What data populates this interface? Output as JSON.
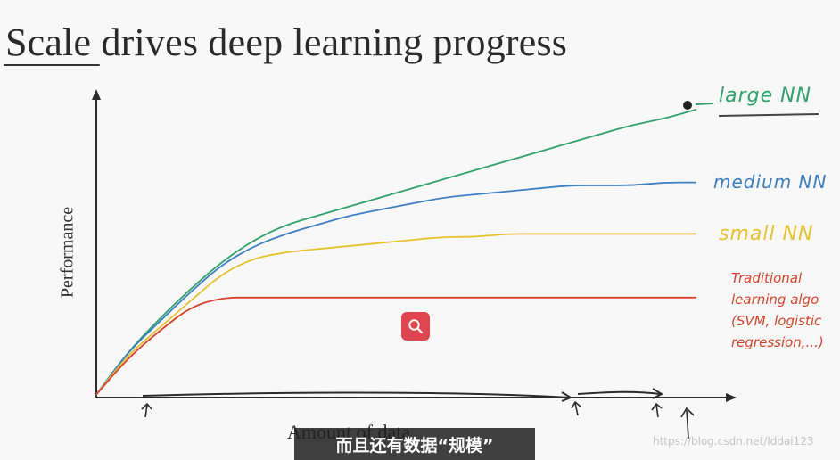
{
  "slide": {
    "title": "Scale drives deep learning progress",
    "title_underlined_word": "Scale"
  },
  "chart_data": {
    "type": "line",
    "xlabel": "Amount of data",
    "ylabel": "Performance",
    "xlim": [
      0,
      100
    ],
    "ylim": [
      0,
      100
    ],
    "grid": false,
    "legend": "right",
    "series": [
      {
        "name": "large NN",
        "color": "#2ea36b",
        "x": [
          0,
          5,
          10,
          15,
          20,
          25,
          30,
          35,
          40,
          45,
          50,
          55,
          60,
          65,
          70,
          75,
          80,
          85,
          90,
          95
        ],
        "y": [
          1,
          15,
          26,
          36,
          45,
          52,
          57,
          60,
          63,
          66,
          69,
          72,
          75,
          78,
          81,
          84,
          87,
          90,
          92,
          95
        ]
      },
      {
        "name": "medium NN",
        "color": "#3b7fc4",
        "x": [
          0,
          5,
          10,
          15,
          20,
          25,
          30,
          35,
          40,
          45,
          50,
          55,
          60,
          65,
          70,
          75,
          80,
          85,
          90,
          95
        ],
        "y": [
          1,
          15,
          25,
          35,
          44,
          50,
          54,
          57,
          60,
          62,
          64,
          66,
          67,
          68,
          69,
          70,
          70,
          70,
          71,
          71
        ]
      },
      {
        "name": "small NN",
        "color": "#e8c22a",
        "x": [
          0,
          5,
          10,
          15,
          20,
          25,
          30,
          35,
          40,
          45,
          50,
          55,
          60,
          65,
          70,
          75,
          80,
          85,
          90,
          95
        ],
        "y": [
          1,
          14,
          23,
          32,
          41,
          46,
          48,
          49,
          50,
          51,
          52,
          53,
          53,
          54,
          54,
          54,
          54,
          54,
          54,
          54
        ]
      },
      {
        "name": "Traditional learning algo (SVM, logistic regression,...)",
        "color": "#d9412b",
        "x": [
          0,
          5,
          10,
          15,
          20,
          25,
          30,
          35,
          40,
          45,
          50,
          55,
          60,
          65,
          70,
          75,
          80,
          85,
          90,
          95
        ],
        "y": [
          1,
          13,
          22,
          30,
          33,
          33,
          33,
          33,
          33,
          33,
          33,
          33,
          33,
          33,
          33,
          33,
          33,
          33,
          33,
          33
        ]
      }
    ]
  },
  "labels": {
    "large": "large NN",
    "medium": "medium NN",
    "small": "small NN",
    "traditional": "Traditional learning algo (SVM, logistic regression,...)"
  },
  "icons": {
    "search": "search-icon"
  },
  "overlay": {
    "subtitle": "而且还有数据“规模”",
    "watermark": "https://blog.csdn.net/lddai123"
  }
}
